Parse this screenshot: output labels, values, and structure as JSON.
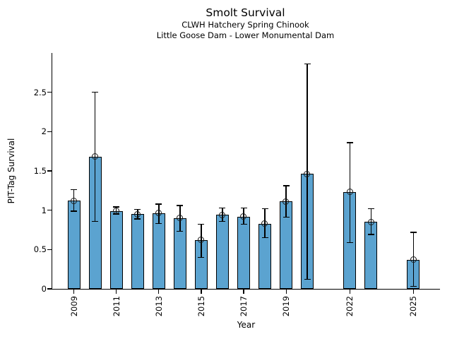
{
  "chart_data": {
    "type": "bar",
    "title": "Smolt Survival",
    "subtitles": [
      "CLWH Hatchery Spring Chinook",
      "Little Goose Dam - Lower Monumental Dam"
    ],
    "xlabel": "Year",
    "ylabel": "PIT-Tag Survival",
    "xlim": [
      2007.98,
      2026.25
    ],
    "ylim": [
      0,
      3
    ],
    "yticks": [
      0,
      0.5,
      1,
      1.5,
      2,
      2.5
    ],
    "ytick_labels": [
      "0",
      "0.5",
      "1",
      "1.5",
      "2",
      "2.5"
    ],
    "xtick_years": [
      2009,
      2011,
      2013,
      2015,
      2017,
      2019,
      2022,
      2025
    ],
    "grid": false,
    "legend": null,
    "colors": {
      "bar_fill": "#5BA3D0",
      "bar_edge": "#000000",
      "error": "#000000",
      "marker_edge": "#1a1a1a",
      "background": "#ffffff"
    },
    "points": [
      {
        "year": 2009,
        "value": 1.12,
        "ci_low": 0.99,
        "ci_high": 1.26
      },
      {
        "year": 2010,
        "value": 1.68,
        "ci_low": 0.86,
        "ci_high": 2.5
      },
      {
        "year": 2011,
        "value": 0.99,
        "ci_low": 0.95,
        "ci_high": 1.04
      },
      {
        "year": 2012,
        "value": 0.95,
        "ci_low": 0.89,
        "ci_high": 1.01
      },
      {
        "year": 2013,
        "value": 0.96,
        "ci_low": 0.83,
        "ci_high": 1.08
      },
      {
        "year": 2014,
        "value": 0.9,
        "ci_low": 0.73,
        "ci_high": 1.06
      },
      {
        "year": 2015,
        "value": 0.62,
        "ci_low": 0.4,
        "ci_high": 0.82
      },
      {
        "year": 2016,
        "value": 0.94,
        "ci_low": 0.86,
        "ci_high": 1.03
      },
      {
        "year": 2017,
        "value": 0.92,
        "ci_low": 0.82,
        "ci_high": 1.03
      },
      {
        "year": 2018,
        "value": 0.83,
        "ci_low": 0.65,
        "ci_high": 1.02
      },
      {
        "year": 2019,
        "value": 1.11,
        "ci_low": 0.91,
        "ci_high": 1.31
      },
      {
        "year": 2020,
        "value": 1.46,
        "ci_low": 0.12,
        "ci_high": 2.86
      },
      {
        "year": 2022,
        "value": 1.23,
        "ci_low": 0.59,
        "ci_high": 1.86
      },
      {
        "year": 2023,
        "value": 0.85,
        "ci_low": 0.69,
        "ci_high": 1.02
      },
      {
        "year": 2025,
        "value": 0.37,
        "ci_low": 0.03,
        "ci_high": 0.72
      }
    ]
  }
}
